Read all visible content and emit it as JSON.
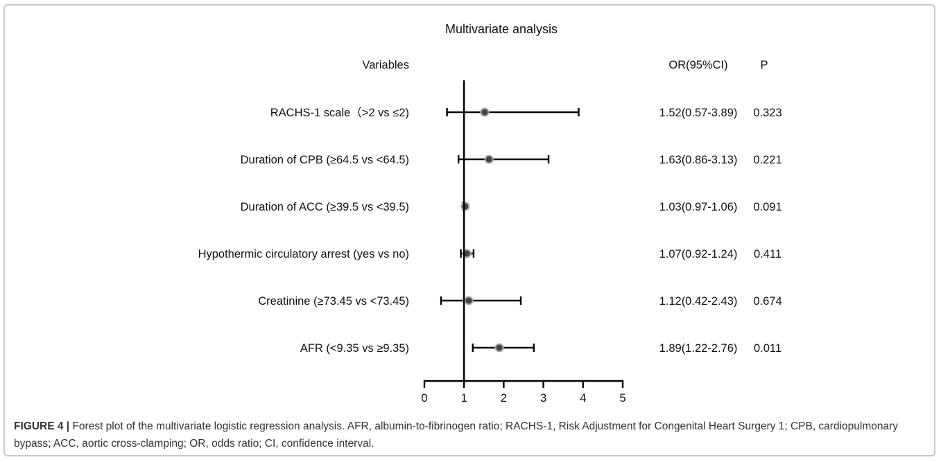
{
  "chart_data": {
    "type": "forest",
    "title": "Multivariate analysis",
    "headers": {
      "variables": "Variables",
      "or": "OR(95%CI)",
      "p": "P"
    },
    "xlim": [
      0,
      5
    ],
    "xticks": [
      "0",
      "1",
      "2",
      "3",
      "4",
      "5"
    ],
    "reference_line": 1,
    "rows": [
      {
        "label": "RACHS-1 scale（>2 vs ≤2)",
        "or": 1.52,
        "lower": 0.57,
        "upper": 3.89,
        "or_text": "1.52(0.57-3.89)",
        "p": "0.323"
      },
      {
        "label": "Duration of CPB (≥64.5 vs <64.5)",
        "or": 1.63,
        "lower": 0.86,
        "upper": 3.13,
        "or_text": "1.63(0.86-3.13)",
        "p": "0.221"
      },
      {
        "label": "Duration of ACC (≥39.5 vs <39.5)",
        "or": 1.03,
        "lower": 0.97,
        "upper": 1.06,
        "or_text": "1.03(0.97-1.06)",
        "p": "0.091"
      },
      {
        "label": "Hypothermic circulatory arrest (yes vs no)",
        "or": 1.07,
        "lower": 0.92,
        "upper": 1.24,
        "or_text": "1.07(0.92-1.24)",
        "p": "0.411"
      },
      {
        "label": "Creatinine (≥73.45 vs <73.45)",
        "or": 1.12,
        "lower": 0.42,
        "upper": 2.43,
        "or_text": "1.12(0.42-2.43)",
        "p": "0.674"
      },
      {
        "label": "AFR (<9.35 vs ≥9.35)",
        "or": 1.89,
        "lower": 1.22,
        "upper": 2.76,
        "or_text": "1.89(1.22-2.76)",
        "p": "0.011"
      }
    ]
  },
  "caption": {
    "lead": "FIGURE 4 |",
    "text": " Forest plot of the multivariate logistic regression analysis. AFR, albumin-to-fibrinogen ratio; RACHS-1, Risk Adjustment for Congenital Heart Surgery 1; CPB, cardiopulmonary bypass; ACC, aortic cross-clamping; OR, odds ratio; CI, confidence interval."
  },
  "colors": {
    "marker_fill": "#444444",
    "marker_ring": "#aaaaaa",
    "line": "#000000",
    "border": "#c8c8c8"
  }
}
